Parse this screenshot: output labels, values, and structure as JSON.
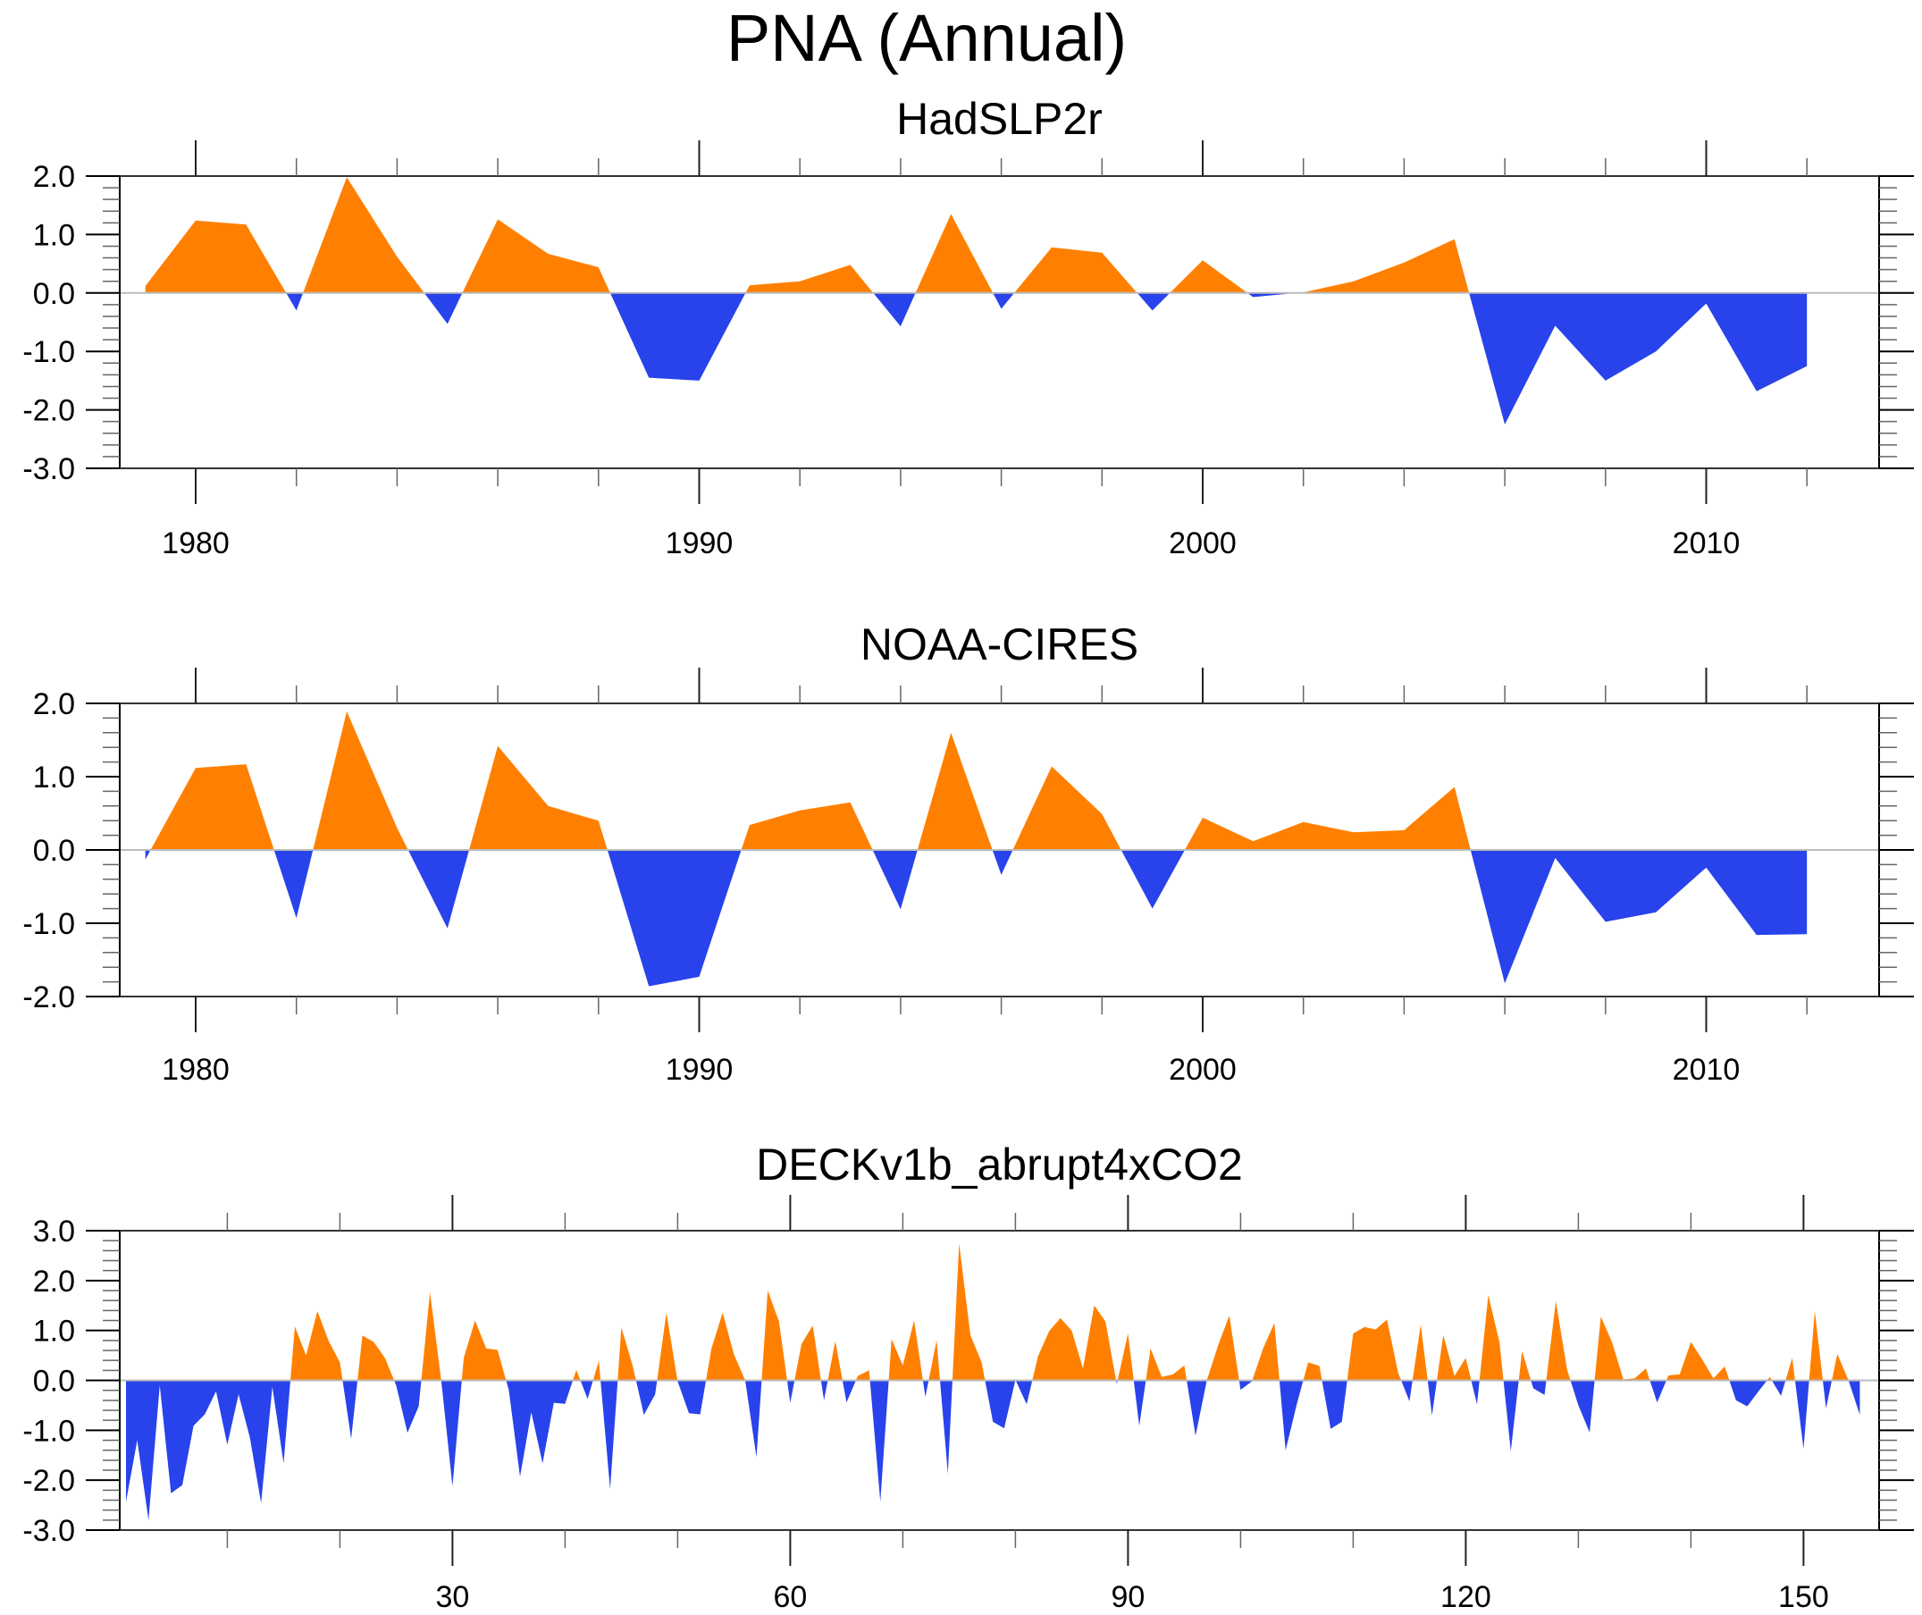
{
  "chart_data": {
    "title": "PNA (Annual)",
    "colors": {
      "positive": "#FF8000",
      "negative": "#2843EB",
      "frame": "#000000",
      "zero_line": "#BBBBBB"
    },
    "panels": [
      {
        "type": "area",
        "title": "HadSLP2r",
        "xlabel": "",
        "ylabel": "",
        "xlim": [
          1977,
          2014
        ],
        "ylim": [
          -3.0,
          2.0
        ],
        "x_major_ticks": [
          1980,
          1990,
          2000,
          2010
        ],
        "x_tick_labels": [
          "1980",
          "1990",
          "2000",
          "2010"
        ],
        "x_minor_step": 2,
        "y_major_ticks": [
          2.0,
          1.0,
          0.0,
          -1.0,
          -2.0,
          -3.0
        ],
        "y_tick_labels": [
          "2.0",
          "1.0",
          "0.0",
          "-1.0",
          "-2.0",
          "-3.0"
        ],
        "y_minor_step": 0.2,
        "reference_line": 0.0,
        "x": [
          1979,
          1980,
          1981,
          1982,
          1983,
          1984,
          1985,
          1986,
          1987,
          1988,
          1989,
          1990,
          1991,
          1992,
          1993,
          1994,
          1995,
          1996,
          1997,
          1998,
          1999,
          2000,
          2001,
          2002,
          2003,
          2004,
          2005,
          2006,
          2007,
          2008,
          2009,
          2010,
          2011,
          2012
        ],
        "values": [
          0.12,
          1.24,
          1.17,
          -0.3,
          1.98,
          0.62,
          -0.53,
          1.26,
          0.67,
          0.44,
          -1.45,
          -1.5,
          0.13,
          0.2,
          0.48,
          -0.57,
          1.35,
          -0.27,
          0.78,
          0.69,
          -0.3,
          0.56,
          -0.07,
          0.01,
          0.2,
          0.52,
          0.92,
          -2.25,
          -0.56,
          -1.5,
          -1.0,
          -0.18,
          -1.68,
          -1.25
        ]
      },
      {
        "type": "area",
        "title": "NOAA-CIRES",
        "xlabel": "",
        "ylabel": "",
        "xlim": [
          1977,
          2014
        ],
        "ylim": [
          -2.0,
          2.0
        ],
        "x_major_ticks": [
          1980,
          1990,
          2000,
          2010
        ],
        "x_tick_labels": [
          "1980",
          "1990",
          "2000",
          "2010"
        ],
        "x_minor_step": 2,
        "y_major_ticks": [
          2.0,
          1.0,
          0.0,
          -1.0,
          -2.0
        ],
        "y_tick_labels": [
          "2.0",
          "1.0",
          "0.0",
          "-1.0",
          "-2.0"
        ],
        "y_minor_step": 0.2,
        "reference_line": 0.0,
        "x": [
          1979,
          1980,
          1981,
          1982,
          1983,
          1984,
          1985,
          1986,
          1987,
          1988,
          1989,
          1990,
          1991,
          1992,
          1993,
          1994,
          1995,
          1996,
          1997,
          1998,
          1999,
          2000,
          2001,
          2002,
          2003,
          2004,
          2005,
          2006,
          2007,
          2008,
          2009,
          2010,
          2011,
          2012
        ],
        "values": [
          -0.13,
          1.12,
          1.17,
          -0.93,
          1.89,
          0.3,
          -1.07,
          1.42,
          0.6,
          0.4,
          -1.86,
          -1.73,
          0.34,
          0.54,
          0.65,
          -0.81,
          1.6,
          -0.34,
          1.14,
          0.49,
          -0.8,
          0.44,
          0.12,
          0.38,
          0.24,
          0.27,
          0.86,
          -1.82,
          -0.11,
          -0.98,
          -0.85,
          -0.24,
          -1.16,
          -1.15
        ]
      },
      {
        "type": "area",
        "title": "DECKv1b_abrupt4xCO2",
        "xlabel": "",
        "ylabel": "",
        "xlim": [
          -0.5,
          156.5
        ],
        "ylim": [
          -3.0,
          3.0
        ],
        "x_major_ticks": [
          30,
          60,
          90,
          120,
          150
        ],
        "x_tick_labels": [
          "30",
          "60",
          "90",
          "120",
          "150"
        ],
        "x_minor_step": 10,
        "y_major_ticks": [
          3.0,
          2.0,
          1.0,
          0.0,
          -1.0,
          -2.0,
          -3.0
        ],
        "y_tick_labels": [
          "3.0",
          "2.0",
          "1.0",
          "0.0",
          "-1.0",
          "-2.0",
          "-3.0"
        ],
        "y_minor_step": 0.2,
        "reference_line": 0.0,
        "x_start": 1,
        "values": [
          -2.43,
          -1.2,
          -2.8,
          -0.1,
          -2.26,
          -2.1,
          -0.91,
          -0.68,
          -0.22,
          -1.29,
          -0.28,
          -1.14,
          -2.46,
          -0.13,
          -1.66,
          1.08,
          0.5,
          1.39,
          0.79,
          0.36,
          -1.17,
          0.9,
          0.77,
          0.45,
          -0.1,
          -1.05,
          -0.52,
          1.77,
          0.0,
          -2.12,
          0.45,
          1.2,
          0.64,
          0.61,
          -0.19,
          -1.93,
          -0.64,
          -1.66,
          -0.45,
          -0.47,
          0.21,
          -0.37,
          0.39,
          -2.18,
          1.06,
          0.3,
          -0.69,
          -0.28,
          1.36,
          -0.02,
          -0.66,
          -0.68,
          0.64,
          1.36,
          0.52,
          0.0,
          -1.54,
          1.8,
          1.18,
          -0.45,
          0.73,
          1.1,
          -0.4,
          0.79,
          -0.44,
          0.09,
          0.2,
          -2.43,
          0.83,
          0.3,
          1.2,
          -0.33,
          0.8,
          -1.87,
          2.75,
          0.91,
          0.36,
          -0.83,
          -0.96,
          0.01,
          -0.48,
          0.48,
          0.99,
          1.25,
          1.0,
          0.24,
          1.5,
          1.18,
          -0.07,
          0.94,
          -0.91,
          0.64,
          0.07,
          0.12,
          0.3,
          -1.11,
          0.0,
          0.7,
          1.3,
          -0.19,
          -0.02,
          0.64,
          1.15,
          -1.4,
          -0.47,
          0.36,
          0.29,
          -0.97,
          -0.83,
          0.94,
          1.07,
          1.02,
          1.22,
          0.15,
          -0.42,
          1.12,
          -0.7,
          0.91,
          0.09,
          0.45,
          -0.48,
          1.71,
          0.76,
          -1.42,
          0.59,
          -0.16,
          -0.29,
          1.59,
          0.22,
          -0.5,
          -1.04,
          1.28,
          0.76,
          0.02,
          0.04,
          0.24,
          -0.44,
          0.1,
          0.12,
          0.77,
          0.42,
          0.04,
          0.28,
          -0.4,
          -0.52,
          -0.22,
          0.07,
          -0.31,
          0.45,
          -1.37,
          1.39,
          -0.56,
          0.53,
          0.0,
          -0.69
        ]
      }
    ]
  }
}
